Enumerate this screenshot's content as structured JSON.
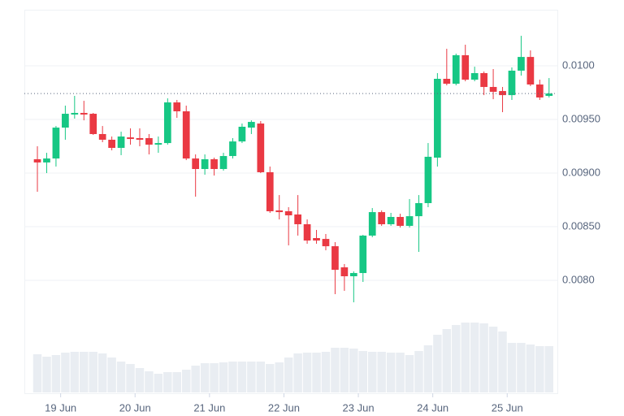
{
  "chart_data": {
    "type": "candlestick",
    "categories": [
      null,
      null,
      "19 Jun",
      null,
      null,
      null,
      null,
      null,
      null,
      null,
      "20 Jun",
      null,
      null,
      null,
      null,
      null,
      null,
      null,
      "21 Jun",
      null,
      null,
      null,
      null,
      null,
      null,
      null,
      "22 Jun",
      null,
      null,
      null,
      null,
      null,
      null,
      null,
      "23 Jun",
      null,
      null,
      null,
      null,
      null,
      null,
      null,
      "24 Jun",
      null,
      null,
      null,
      null,
      null,
      null,
      null,
      "25 Jun",
      null,
      null,
      null,
      null,
      null
    ],
    "open": [
      0.009129,
      0.009099,
      0.009136,
      0.009424,
      0.009546,
      0.009561,
      0.009553,
      0.009364,
      0.009311,
      0.009235,
      0.009333,
      0.009326,
      0.009326,
      0.009265,
      0.00928,
      0.009659,
      0.009576,
      0.009136,
      0.009038,
      0.009129,
      0.009038,
      0.009159,
      0.009295,
      0.009424,
      0.009462,
      0.009008,
      0.008652,
      0.008644,
      0.008614,
      0.008523,
      0.008394,
      0.008386,
      0.008318,
      0.008121,
      0.008038,
      0.008068,
      0.008417,
      0.008636,
      0.008523,
      0.008591,
      0.008508,
      0.008598,
      0.00872,
      0.009144,
      0.009879,
      0.009833,
      0.010099,
      0.009871,
      0.009932,
      0.009803,
      0.009765,
      0.009727,
      0.009955,
      0.010083,
      0.009826,
      0.00972
    ],
    "high": [
      0.00925,
      0.009189,
      0.009439,
      0.009629,
      0.00972,
      0.009674,
      0.009561,
      0.009439,
      0.009341,
      0.009386,
      0.009417,
      0.009417,
      0.009364,
      0.009341,
      0.009697,
      0.009682,
      0.009629,
      0.009174,
      0.009174,
      0.009144,
      0.009189,
      0.009326,
      0.009462,
      0.009492,
      0.009485,
      0.009061,
      0.008795,
      0.008682,
      0.008795,
      0.008568,
      0.00847,
      0.008432,
      0.008356,
      0.008152,
      0.008083,
      0.008424,
      0.008674,
      0.008652,
      0.008629,
      0.008621,
      0.008758,
      0.008795,
      0.00928,
      0.009932,
      0.010159,
      0.010114,
      0.010197,
      0.009992,
      0.009947,
      0.00997,
      0.009803,
      0.009985,
      0.01028,
      0.010144,
      0.009871,
      0.009886
    ],
    "low": [
      0.008826,
      0.009,
      0.009061,
      0.009311,
      0.009508,
      0.009492,
      0.009356,
      0.009288,
      0.009212,
      0.009167,
      0.009265,
      0.00925,
      0.009174,
      0.009189,
      0.009265,
      0.009515,
      0.009121,
      0.00878,
      0.008985,
      0.008977,
      0.009023,
      0.009136,
      0.00928,
      0.009364,
      0.009,
      0.008629,
      0.008568,
      0.008326,
      0.008417,
      0.008341,
      0.008341,
      0.00828,
      0.007871,
      0.007902,
      0.007795,
      0.007985,
      0.008402,
      0.008508,
      0.008508,
      0.008492,
      0.008492,
      0.008265,
      0.008682,
      0.009061,
      0.009818,
      0.009818,
      0.009856,
      0.009856,
      0.009727,
      0.009689,
      0.009568,
      0.009682,
      0.009909,
      0.009811,
      0.009682,
      0.009705
    ],
    "close": [
      0.009099,
      0.009136,
      0.009424,
      0.009553,
      0.009561,
      0.009546,
      0.009364,
      0.009311,
      0.009235,
      0.009341,
      0.009318,
      0.009311,
      0.009265,
      0.00928,
      0.009659,
      0.009576,
      0.009136,
      0.009038,
      0.009129,
      0.009038,
      0.009159,
      0.009295,
      0.009432,
      0.009477,
      0.009008,
      0.008644,
      0.008636,
      0.008606,
      0.008523,
      0.008371,
      0.008371,
      0.008318,
      0.008098,
      0.008038,
      0.008068,
      0.008417,
      0.008636,
      0.008523,
      0.008591,
      0.008508,
      0.008598,
      0.00872,
      0.009152,
      0.009879,
      0.009833,
      0.010099,
      0.009871,
      0.009932,
      0.009803,
      0.009758,
      0.009727,
      0.009955,
      0.010083,
      0.009826,
      0.009705,
      0.009742
    ],
    "volume": [
      47,
      44,
      46,
      49,
      50,
      50,
      50,
      48,
      43,
      38,
      35,
      30,
      26,
      23,
      25,
      25,
      28,
      33,
      36,
      36,
      37,
      38,
      38,
      38,
      38,
      35,
      37,
      43,
      48,
      49,
      49,
      50,
      55,
      55,
      54,
      51,
      50,
      50,
      49,
      49,
      46,
      51,
      58,
      71,
      78,
      83,
      86,
      86,
      85,
      81,
      75,
      61,
      61,
      59,
      57,
      57
    ],
    "up_color": "#16c784",
    "down_color": "#ea3943",
    "volume_color": "#e9edf2",
    "ylim": [
      0.006947,
      0.010523
    ],
    "yticks": [
      {
        "value": 0.008,
        "label": "0.0080"
      },
      {
        "value": 0.0085,
        "label": "0.00850"
      },
      {
        "value": 0.009,
        "label": "0.00900"
      },
      {
        "value": 0.0095,
        "label": "0.00950"
      },
      {
        "value": 0.01,
        "label": "0.0100"
      }
    ],
    "grid": true
  }
}
